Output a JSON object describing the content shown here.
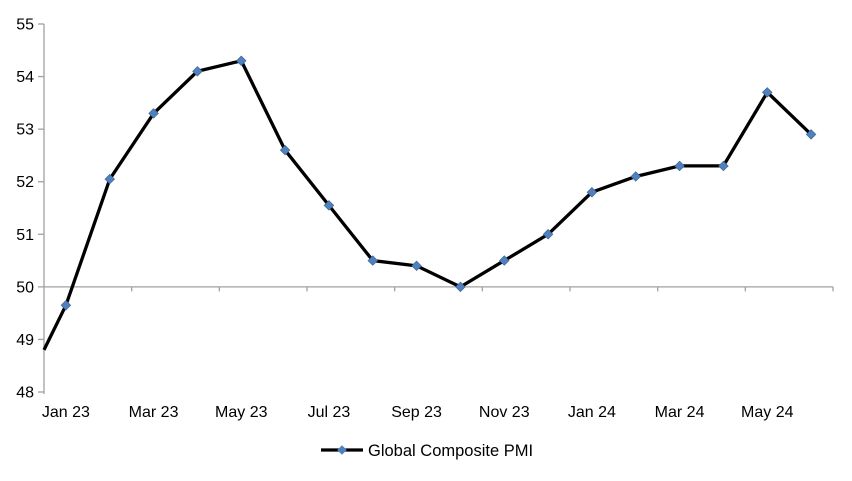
{
  "chart_data": {
    "type": "line",
    "title": "",
    "categories": [
      "Jan 23",
      "Feb 23",
      "Mar 23",
      "Apr 23",
      "May 23",
      "Jun 23",
      "Jul 23",
      "Aug 23",
      "Sep 23",
      "Oct 23",
      "Nov 23",
      "Dec 23",
      "Jan 24",
      "Feb 24",
      "Mar 24",
      "Apr 24",
      "May 24",
      "Jun 24"
    ],
    "series": [
      {
        "name": "Global Composite PMI",
        "values": [
          49.65,
          52.05,
          53.3,
          54.1,
          54.3,
          52.6,
          51.55,
          50.5,
          50.4,
          50.0,
          50.5,
          51.0,
          51.8,
          52.1,
          52.3,
          52.3,
          53.7,
          52.9
        ],
        "line_color": "#000000",
        "marker_color": "#4f81bd",
        "marker_shape": "diamond"
      }
    ],
    "lead_in_value_at_left_axis": 48.8,
    "ylim": [
      48,
      55
    ],
    "y_tick_labels": [
      "48",
      "49",
      "50",
      "51",
      "52",
      "53",
      "54",
      "55"
    ],
    "x_label_step": 2,
    "x_tick_labels_visible": [
      "Jan 23",
      "Mar 23",
      "May 23",
      "Jul 23",
      "Sep 23",
      "Nov 23",
      "Jan 24",
      "Mar 24",
      "May 24"
    ],
    "category_axis_crosses_at": 50,
    "axis_color": "#a0a0a0",
    "text_color": "#000000",
    "grid": "off",
    "legend": {
      "label": "Global Composite PMI",
      "position": "bottom-center"
    }
  }
}
